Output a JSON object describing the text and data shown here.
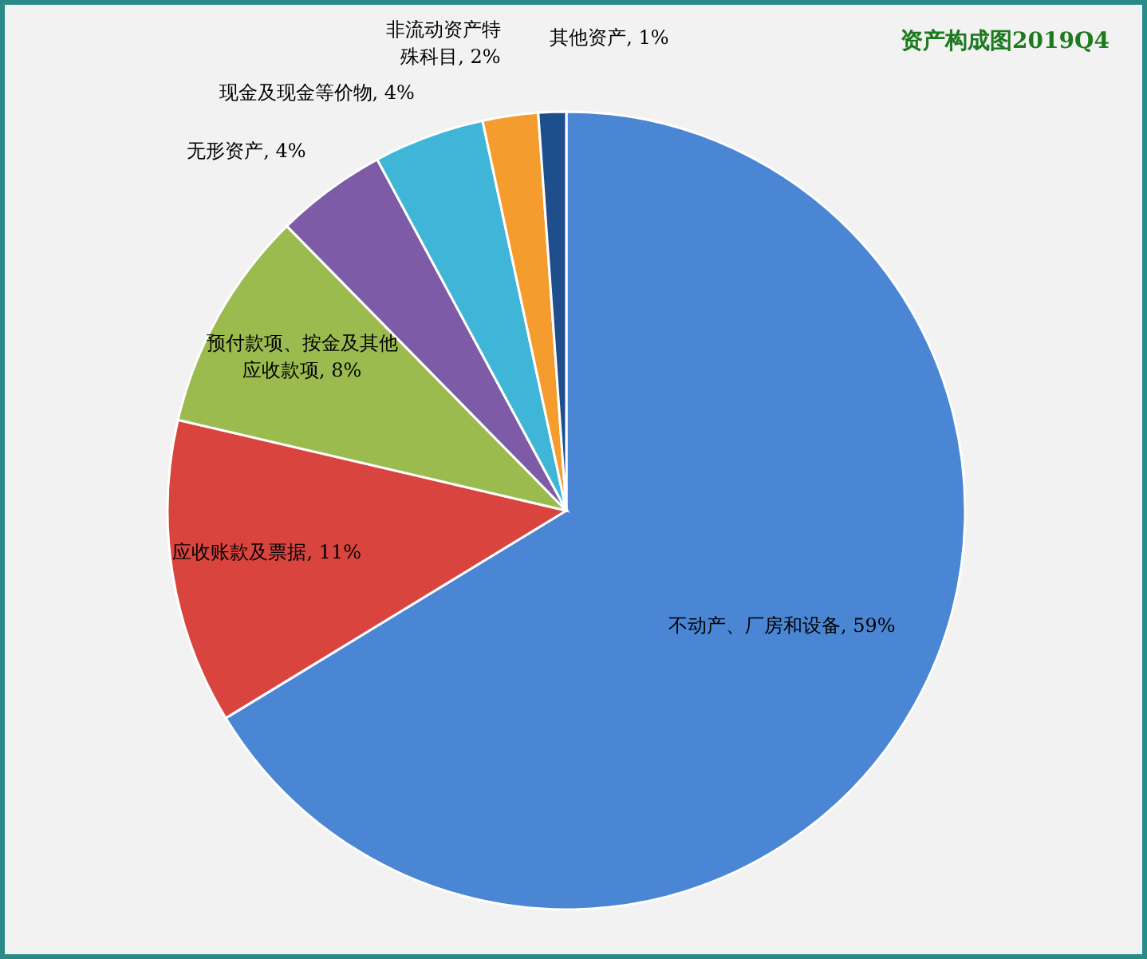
{
  "chart_data": {
    "type": "pie",
    "title": "资产构成图2019Q4",
    "categories": [
      "不动产、厂房和设备",
      "应收账款及票据",
      "预付款项、按金及其他应收款项",
      "无形资产",
      "现金及现金等价物",
      "非流动资产特殊科目",
      "其他资产"
    ],
    "values": [
      59,
      11,
      8,
      4,
      4,
      2,
      1
    ],
    "value_labels": [
      "59%",
      "11%",
      "8%",
      "4%",
      "4%",
      "2%",
      "1%"
    ],
    "colors": [
      "#4a86d4",
      "#d9443f",
      "#9bbb4f",
      "#7d5ba6",
      "#3fb5d7",
      "#f59c2f",
      "#1f4e8c"
    ],
    "legend": false
  }
}
